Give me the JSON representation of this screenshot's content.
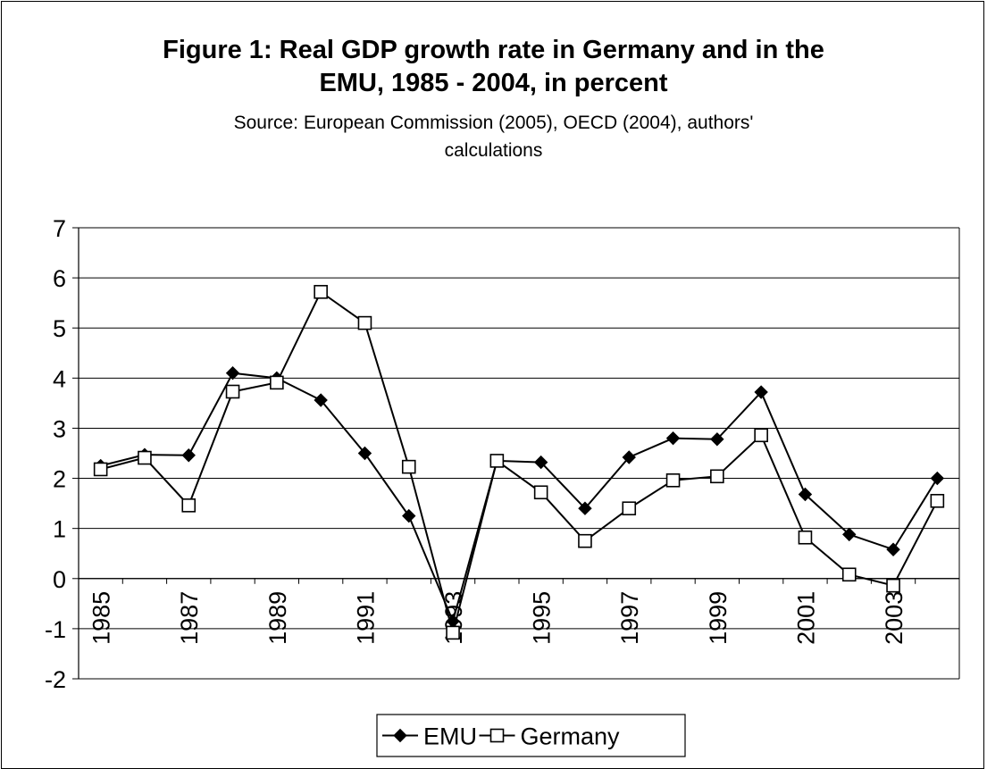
{
  "chart_data": {
    "type": "line",
    "title_lines": [
      "Figure 1: Real GDP growth rate in Germany and in the",
      "EMU, 1985 - 2004, in percent"
    ],
    "subtitle_lines": [
      "Source: European Commission (2005), OECD (2004), authors'",
      "calculations"
    ],
    "x": [
      1985,
      1986,
      1987,
      1988,
      1989,
      1990,
      1991,
      1992,
      1993,
      1994,
      1995,
      1996,
      1997,
      1998,
      1999,
      2000,
      2001,
      2002,
      2003,
      2004
    ],
    "x_tick_labels": [
      "1985",
      "1987",
      "1989",
      "1991",
      "1993",
      "1995",
      "1997",
      "1999",
      "2001",
      "2003"
    ],
    "y_ticks": [
      "-2",
      "-1",
      "0",
      "1",
      "2",
      "3",
      "4",
      "5",
      "6",
      "7"
    ],
    "ylim": [
      -2,
      7
    ],
    "grid": true,
    "legend_position": "bottom",
    "series": [
      {
        "name": "EMU",
        "marker": "diamond",
        "color": "#000000",
        "values": [
          2.25,
          2.47,
          2.46,
          4.1,
          4.0,
          3.56,
          2.5,
          1.25,
          -0.85,
          2.35,
          2.32,
          1.4,
          2.42,
          2.8,
          2.78,
          3.72,
          1.68,
          0.88,
          0.58,
          2.0
        ]
      },
      {
        "name": "Germany",
        "marker": "square-open",
        "color": "#000000",
        "values": [
          2.18,
          2.41,
          1.46,
          3.73,
          3.91,
          5.72,
          5.1,
          2.23,
          -1.08,
          2.35,
          1.72,
          0.75,
          1.4,
          1.96,
          2.04,
          2.86,
          0.82,
          0.08,
          -0.14,
          1.55
        ]
      }
    ]
  }
}
